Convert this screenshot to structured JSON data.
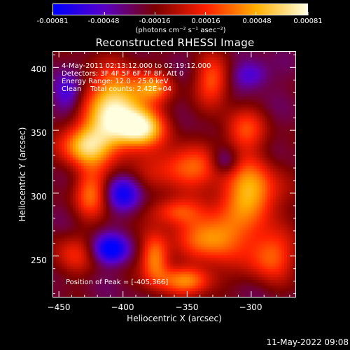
{
  "colorbar": {
    "tick_labels": [
      "-0.00081",
      "-0.00048",
      "-0.00016",
      "0.00016",
      "0.00048",
      "0.00081"
    ],
    "units": "(photons cm⁻² s⁻¹ asec⁻²)",
    "colors": [
      "#0000ff",
      "#5a00c8",
      "#7a0000",
      "#ff2000",
      "#ffb000",
      "#ffffe0"
    ]
  },
  "plot_title": "Reconstructed RHESSI Image",
  "annotations": {
    "time": "4-May-2011 02:13:12.000 to 02:19:12.000",
    "detectors": "Detectors: 3F 4F 5F 6F 7F 8F, Att 0",
    "energy": "Energy Range: 12.0 - 25.0 keV",
    "clean": "Clean    Total counts: 2.42E+04",
    "peak": "Position of Peak = [-405,366]"
  },
  "footer": {
    "date_stamp": "11-May-2022 09:08"
  },
  "chart_data": {
    "type": "heatmap",
    "title": "Reconstructed RHESSI Image",
    "xlabel": "Heliocentric X (arcsec)",
    "ylabel": "Heliocentric Y (arcsec)",
    "xlim": [
      -455,
      -265
    ],
    "ylim": [
      217,
      413
    ],
    "x_ticks": [
      -450,
      -400,
      -350,
      -300
    ],
    "y_ticks": [
      250,
      300,
      350,
      400
    ],
    "x_tick_labels": [
      "−450",
      "−400",
      "−350",
      "−300"
    ],
    "y_tick_labels": [
      "250",
      "300",
      "350",
      "400"
    ],
    "value_range": [
      -0.00081,
      0.00081
    ],
    "colorbar_ticks": [
      -0.00081,
      -0.00048,
      -0.00016,
      0.00016,
      0.00048,
      0.00081
    ],
    "peak": {
      "x": -405,
      "y": 366
    },
    "blobs": [
      {
        "x": -405,
        "y": 366,
        "sx": 18,
        "sy": 22,
        "amp": 1.0
      },
      {
        "x": -430,
        "y": 338,
        "sx": 14,
        "sy": 12,
        "amp": 0.75
      },
      {
        "x": -385,
        "y": 352,
        "sx": 14,
        "sy": 10,
        "amp": 0.65
      },
      {
        "x": -425,
        "y": 300,
        "sx": 10,
        "sy": 14,
        "amp": 0.55
      },
      {
        "x": -350,
        "y": 320,
        "sx": 22,
        "sy": 12,
        "amp": 0.55
      },
      {
        "x": -375,
        "y": 385,
        "sx": 10,
        "sy": 8,
        "amp": 0.45
      },
      {
        "x": -330,
        "y": 390,
        "sx": 10,
        "sy": 14,
        "amp": 0.5
      },
      {
        "x": -305,
        "y": 350,
        "sx": 12,
        "sy": 12,
        "amp": 0.45
      },
      {
        "x": -300,
        "y": 300,
        "sx": 16,
        "sy": 18,
        "amp": 0.75
      },
      {
        "x": -330,
        "y": 265,
        "sx": 18,
        "sy": 14,
        "amp": 0.7
      },
      {
        "x": -360,
        "y": 285,
        "sx": 14,
        "sy": 8,
        "amp": 0.45
      },
      {
        "x": -375,
        "y": 248,
        "sx": 8,
        "sy": 14,
        "amp": 0.65
      },
      {
        "x": -440,
        "y": 250,
        "sx": 12,
        "sy": 12,
        "amp": 0.35
      },
      {
        "x": -285,
        "y": 250,
        "sx": 14,
        "sy": 14,
        "amp": 0.55
      },
      {
        "x": -350,
        "y": 230,
        "sx": 16,
        "sy": 8,
        "amp": 0.6
      },
      {
        "x": -410,
        "y": 255,
        "sx": 10,
        "sy": 8,
        "amp": -0.6
      },
      {
        "x": -400,
        "y": 300,
        "sx": 10,
        "sy": 10,
        "amp": -0.5
      },
      {
        "x": -445,
        "y": 380,
        "sx": 8,
        "sy": 12,
        "amp": -0.4
      },
      {
        "x": -300,
        "y": 395,
        "sx": 10,
        "sy": 8,
        "amp": -0.35
      },
      {
        "x": -320,
        "y": 325,
        "sx": 8,
        "sy": 8,
        "amp": -0.4
      }
    ]
  }
}
